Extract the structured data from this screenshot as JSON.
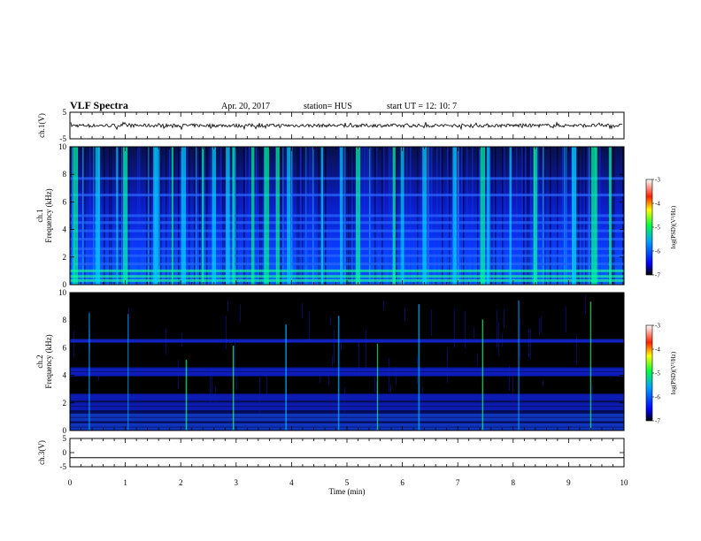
{
  "header": {
    "title": "VLF Spectra",
    "date": "Apr. 20, 2017",
    "station": "station= HUS",
    "start_time": "start UT = 12: 10: 7"
  },
  "colors": {
    "spectrogram_bg": "#000000",
    "noise_blue": "#0a1cff",
    "cyan": "#00c8ff",
    "green": "#00ff60"
  },
  "chart_data": [
    {
      "type": "line",
      "name": "ch1-waveform",
      "ylabel": "ch.1(V)",
      "ylim": [
        -5,
        5
      ],
      "yticks": [
        "5",
        "-5"
      ],
      "xlim": [
        0,
        10
      ],
      "trace_level": 0,
      "trace_amplitude": 0.4
    },
    {
      "type": "heatmap",
      "name": "ch1-spectrogram",
      "ylabel": "Frequency (kHz)",
      "channel_label": "ch.1",
      "ylim": [
        0,
        10
      ],
      "yticks": [
        "0",
        "2",
        "4",
        "6",
        "8",
        "10"
      ],
      "xlim": [
        0,
        10
      ],
      "intensity": "high",
      "bursts_min": [
        0.1,
        0.5,
        0.85,
        1.0,
        1.55,
        1.85,
        2.05,
        2.4,
        2.6,
        2.85,
        2.95,
        3.3,
        3.55,
        3.75,
        3.95,
        4.55,
        4.9,
        5.2,
        5.85,
        6.0,
        6.4,
        6.95,
        7.45,
        7.55,
        7.95,
        8.4,
        9.1,
        9.45,
        9.5,
        9.75
      ],
      "horizontal_bands_khz": [
        0.3,
        0.6,
        1.0,
        1.5,
        2.1,
        2.6,
        3.3,
        3.9,
        4.5,
        5.0,
        6.5,
        7.7
      ]
    },
    {
      "type": "heatmap",
      "name": "ch2-spectrogram",
      "ylabel": "Frequency (kHz)",
      "channel_label": "ch.2",
      "ylim": [
        0,
        10
      ],
      "yticks": [
        "0",
        "2",
        "4",
        "6",
        "8",
        "10"
      ],
      "xlim": [
        0,
        10
      ],
      "intensity": "low",
      "bursts_min": [
        0.35,
        1.05,
        2.1,
        2.95,
        3.9,
        4.85,
        5.55,
        6.3,
        7.45,
        8.1,
        9.4
      ],
      "horizontal_bands_khz": [
        0.1,
        0.4,
        0.8,
        1.1,
        1.6,
        1.9,
        2.3,
        2.5,
        4.1,
        4.4,
        6.5
      ]
    },
    {
      "type": "line",
      "name": "ch3-waveform",
      "ylabel": "ch.3(V)",
      "ylim": [
        -5,
        5
      ],
      "yticks": [
        "5",
        "0",
        "-5"
      ],
      "xlim": [
        0,
        10
      ],
      "trace_level": -1.8,
      "trace_amplitude": 0
    },
    {
      "type": "colorbar",
      "name": "psd-colorbar",
      "label": "log(PSD)(V²/Hz)",
      "range": [
        -7,
        -3
      ],
      "ticks": [
        "-3",
        "-4",
        "-5",
        "-6",
        "-7"
      ]
    }
  ],
  "xaxis": {
    "label": "Time (min)",
    "ticks": [
      "0",
      "1",
      "2",
      "3",
      "4",
      "5",
      "6",
      "7",
      "8",
      "9",
      "10"
    ]
  }
}
